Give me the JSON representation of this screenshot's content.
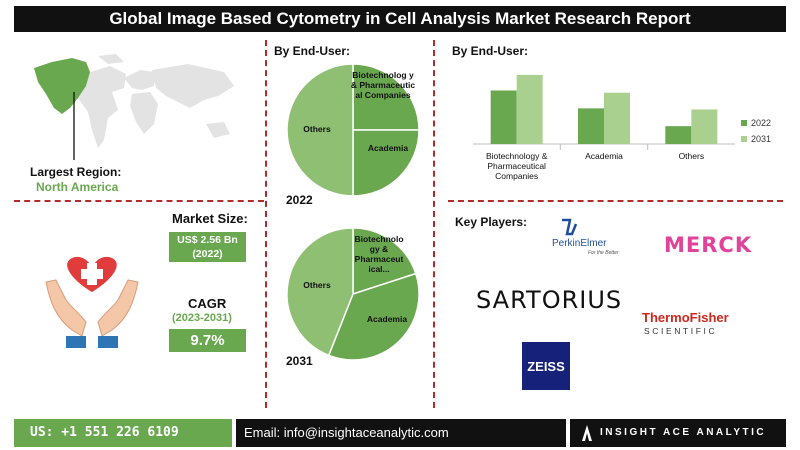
{
  "title": "Global Image Based Cytometry in Cell Analysis Market Research Report",
  "region": {
    "label": "Largest Region:",
    "value": "North America"
  },
  "market_size": {
    "label": "Market Size:",
    "value_line1": "US$ 2.56 Bn",
    "value_line2": "(2022)"
  },
  "cagr": {
    "label": "CAGR",
    "period": "(2023-2031)",
    "value": "9.7%"
  },
  "end_user_pies_label": "By End-User:",
  "end_user_bars_label": "By End-User:",
  "key_players_label": "Key Players:",
  "key_players": [
    "PerkinElmer",
    "MERCK",
    "SARTORIUS",
    "ThermoFisher SCIENTIFIC",
    "ZEISS"
  ],
  "logo_text": {
    "perkin_name": "PerkinElmer",
    "perkin_tagline": "For the Better",
    "merck": "MERCK",
    "sartorius": "SARTORIUS",
    "thermo_1": "ThermoFisher",
    "thermo_2": "SCIENTIFIC",
    "zeiss": "ZEISS"
  },
  "footer": {
    "phone": "US: +1 551 226 6109",
    "email": "Email: info@insightaceanalytic.com",
    "brand": "INSIGHT ACE ANALYTIC"
  },
  "colors": {
    "green_dark": "#6aa84f",
    "green_light": "#a9d08e",
    "divider": "#b32c2c",
    "black": "#111111"
  },
  "chart_data": [
    {
      "type": "pie",
      "title": "2022",
      "labels": [
        "Biotechnology & Pharmaceutical Companies",
        "Academia",
        "Others"
      ],
      "display_labels": [
        "Biotechnolog y & Pharmaceutic al Companies",
        "Academia",
        "Others"
      ],
      "values": [
        0.25,
        0.25,
        0.5
      ],
      "colors": [
        "#6aa84f",
        "#6aa84f",
        "#8fbf73"
      ]
    },
    {
      "type": "pie",
      "title": "2031",
      "labels": [
        "Biotechnology & Pharmaceutical Companies",
        "Academia",
        "Others"
      ],
      "display_labels": [
        "Biotechnolo gy & Pharmaceut ical...",
        "Academia",
        "Others"
      ],
      "values": [
        0.2,
        0.36,
        0.44
      ],
      "colors": [
        "#6aa84f",
        "#6aa84f",
        "#8fbf73"
      ]
    },
    {
      "type": "bar",
      "categories": [
        "Biotechnology & Pharmaceutical Companies",
        "Academia",
        "Others"
      ],
      "category_lines": [
        [
          "Biotechnology &",
          "Pharmaceutical",
          "Companies"
        ],
        [
          "Academia"
        ],
        [
          "Others"
        ]
      ],
      "series": [
        {
          "name": "2022",
          "values": [
            48,
            32,
            16
          ],
          "color": "#6aa84f"
        },
        {
          "name": "2031",
          "values": [
            62,
            46,
            31
          ],
          "color": "#a9d08e"
        }
      ],
      "ylim": [
        0,
        70
      ],
      "grid": false,
      "legend": "right"
    }
  ]
}
